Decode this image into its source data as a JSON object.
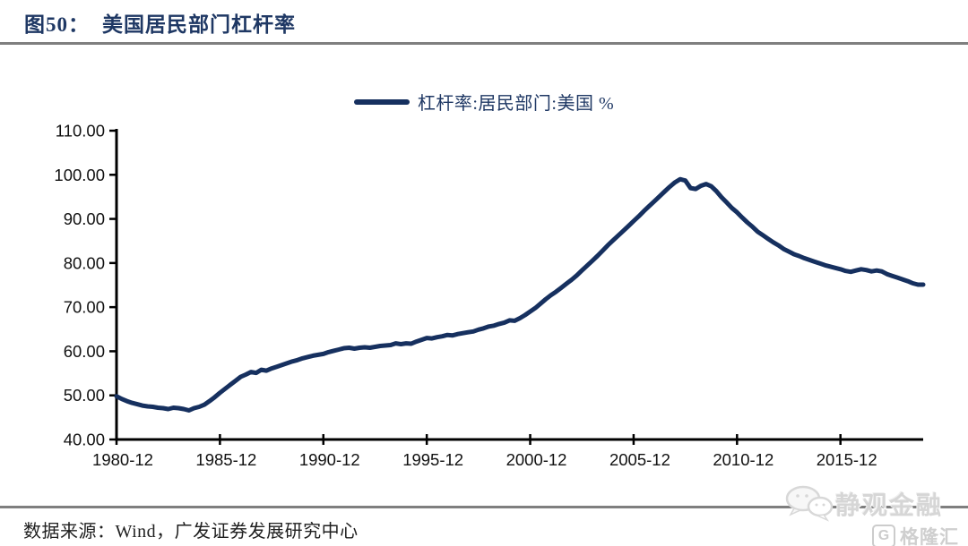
{
  "header": {
    "figure_label": "图50：",
    "title": "美国居民部门杠杆率"
  },
  "legend": {
    "label": "杠杆率:居民部门:美国 %"
  },
  "footer": {
    "source": "数据来源：Wind，广发证券发展研究中心"
  },
  "watermarks": {
    "wechat_account": "静观金融",
    "platform": "格隆汇",
    "platform_initial": "G"
  },
  "colors": {
    "line": "#16305F",
    "title_ink": "#1F3864",
    "rule_gray": "#7F7F7F",
    "axis_black": "#000000",
    "tick_text": "#111111",
    "watermark_gray": "#CFCFCF"
  },
  "chart_data": {
    "type": "line",
    "title": "图50：美国居民部门杠杆率",
    "xlabel": "",
    "ylabel": "",
    "grid": false,
    "legend_position": "top-center",
    "ylim": [
      40,
      110
    ],
    "y_ticks": [
      40,
      50,
      60,
      70,
      80,
      90,
      100,
      110
    ],
    "y_tick_labels": [
      "40.00",
      "50.00",
      "60.00",
      "70.00",
      "80.00",
      "90.00",
      "100.00",
      "110.00"
    ],
    "x_tick_labels": [
      "1980-12",
      "1985-12",
      "1990-12",
      "1995-12",
      "2000-12",
      "2005-12",
      "2010-12",
      "2015-12"
    ],
    "x_tick_indices": [
      0,
      20,
      40,
      60,
      80,
      100,
      120,
      140
    ],
    "series": [
      {
        "name": "杠杆率:居民部门:美国 %",
        "start": "1980-12",
        "end": "2019-12",
        "frequency": "quarterly",
        "values": [
          49.8,
          49.2,
          48.7,
          48.3,
          48.0,
          47.7,
          47.5,
          47.4,
          47.2,
          47.1,
          46.9,
          47.2,
          47.1,
          46.9,
          46.6,
          47.1,
          47.4,
          47.9,
          48.7,
          49.6,
          50.6,
          51.5,
          52.4,
          53.3,
          54.2,
          54.7,
          55.3,
          55.1,
          55.8,
          55.6,
          56.1,
          56.5,
          56.9,
          57.3,
          57.7,
          58.0,
          58.4,
          58.7,
          59.0,
          59.2,
          59.4,
          59.8,
          60.1,
          60.4,
          60.7,
          60.8,
          60.6,
          60.8,
          60.9,
          60.8,
          61.0,
          61.2,
          61.3,
          61.4,
          61.8,
          61.6,
          61.8,
          61.7,
          62.2,
          62.6,
          63.0,
          62.9,
          63.2,
          63.4,
          63.7,
          63.6,
          63.9,
          64.1,
          64.3,
          64.5,
          64.9,
          65.2,
          65.6,
          65.8,
          66.2,
          66.5,
          67.0,
          66.9,
          67.5,
          68.2,
          69.0,
          69.8,
          70.8,
          71.8,
          72.7,
          73.5,
          74.4,
          75.3,
          76.2,
          77.2,
          78.3,
          79.4,
          80.5,
          81.6,
          82.8,
          84.0,
          85.1,
          86.2,
          87.3,
          88.4,
          89.5,
          90.6,
          91.8,
          92.9,
          94.0,
          95.1,
          96.2,
          97.3,
          98.3,
          99.0,
          98.7,
          97.0,
          96.8,
          97.5,
          97.9,
          97.4,
          96.3,
          94.9,
          93.7,
          92.5,
          91.5,
          90.3,
          89.2,
          88.2,
          87.1,
          86.3,
          85.5,
          84.7,
          84.0,
          83.2,
          82.6,
          82.0,
          81.6,
          81.1,
          80.7,
          80.3,
          79.9,
          79.5,
          79.2,
          78.9,
          78.6,
          78.2,
          78.0,
          78.3,
          78.6,
          78.4,
          78.1,
          78.3,
          78.1,
          77.5,
          77.1,
          76.7,
          76.3,
          75.9,
          75.4,
          75.1,
          75.1
        ]
      }
    ]
  }
}
